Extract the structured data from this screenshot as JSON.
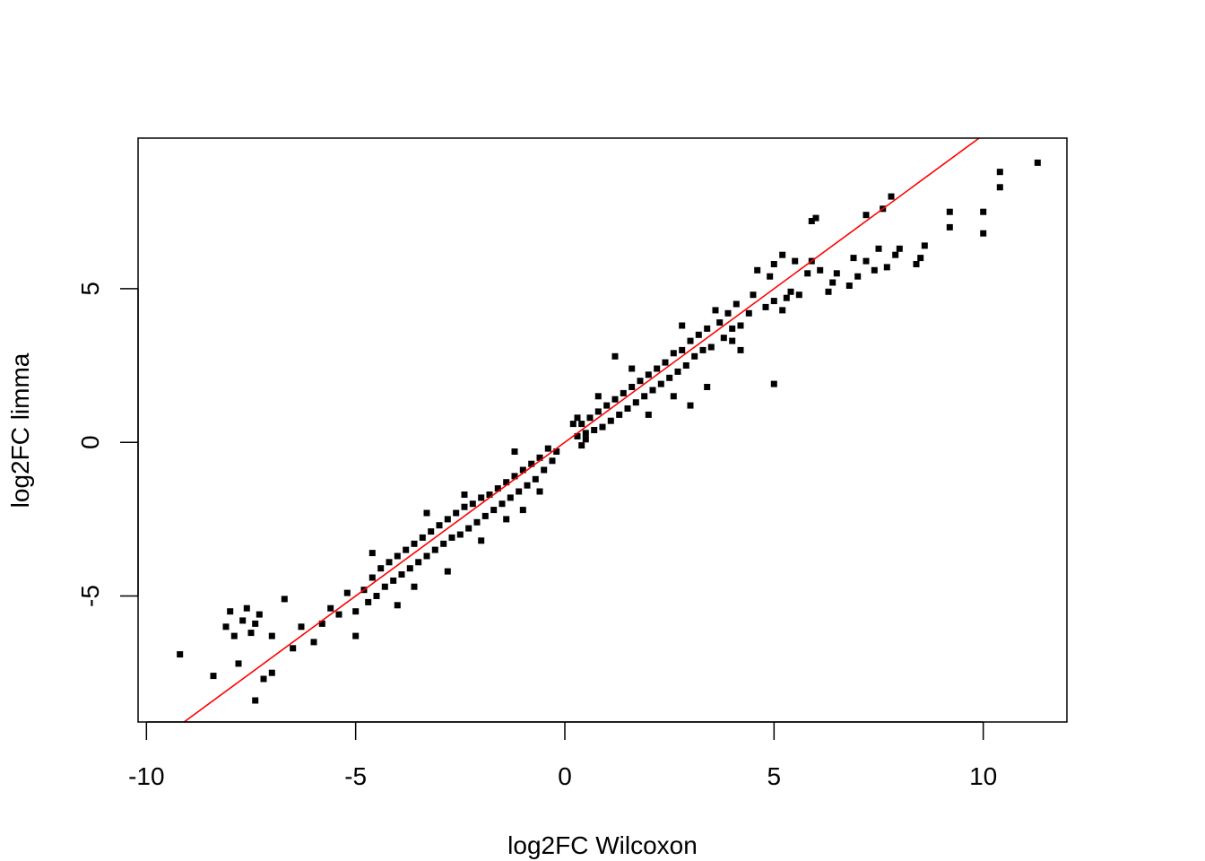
{
  "chart_data": {
    "type": "scatter",
    "title": "",
    "xlabel": "log2FC Wilcoxon",
    "ylabel": "log2FC limma",
    "xlim": [
      -10.2,
      12.0
    ],
    "ylim": [
      -9.1,
      9.9
    ],
    "x_ticks": [
      -10,
      -5,
      0,
      5,
      10
    ],
    "x_tick_labels": [
      "-10",
      "-5",
      "0",
      "5",
      "10"
    ],
    "y_ticks": [
      -5,
      0,
      5
    ],
    "y_tick_labels": [
      "-5",
      "0",
      "5"
    ],
    "grid": false,
    "legend": "none",
    "point_color": "#000000",
    "reference_line": {
      "slope": 1,
      "intercept": 0,
      "color": "#ff0000"
    },
    "series": [
      {
        "points": [
          [
            11.3,
            9.1
          ],
          [
            10.4,
            8.8
          ],
          [
            10.4,
            8.3
          ],
          [
            10.0,
            7.5
          ],
          [
            10.0,
            6.8
          ],
          [
            9.2,
            7.5
          ],
          [
            9.2,
            7.0
          ],
          [
            8.6,
            6.4
          ],
          [
            8.5,
            6.0
          ],
          [
            8.4,
            5.8
          ],
          [
            8.0,
            6.3
          ],
          [
            7.9,
            6.1
          ],
          [
            7.8,
            8.0
          ],
          [
            7.7,
            5.7
          ],
          [
            7.6,
            7.6
          ],
          [
            7.5,
            6.3
          ],
          [
            7.4,
            5.6
          ],
          [
            7.2,
            7.4
          ],
          [
            7.2,
            5.9
          ],
          [
            7.0,
            5.4
          ],
          [
            6.9,
            6.0
          ],
          [
            6.8,
            5.1
          ],
          [
            6.5,
            5.5
          ],
          [
            6.4,
            5.2
          ],
          [
            6.3,
            4.9
          ],
          [
            6.1,
            5.6
          ],
          [
            6.0,
            7.3
          ],
          [
            5.9,
            7.2
          ],
          [
            5.9,
            5.9
          ],
          [
            5.8,
            5.5
          ],
          [
            5.6,
            4.8
          ],
          [
            5.5,
            5.9
          ],
          [
            5.4,
            4.9
          ],
          [
            5.3,
            4.7
          ],
          [
            5.2,
            4.3
          ],
          [
            5.2,
            6.1
          ],
          [
            5.0,
            5.8
          ],
          [
            5.0,
            4.6
          ],
          [
            4.9,
            5.4
          ],
          [
            4.8,
            4.4
          ],
          [
            4.6,
            5.6
          ],
          [
            4.5,
            4.8
          ],
          [
            4.4,
            4.2
          ],
          [
            4.2,
            3.8
          ],
          [
            4.1,
            4.5
          ],
          [
            4.0,
            3.7
          ],
          [
            3.9,
            4.2
          ],
          [
            3.8,
            3.4
          ],
          [
            3.7,
            3.9
          ],
          [
            3.6,
            4.3
          ],
          [
            3.5,
            3.1
          ],
          [
            3.4,
            3.7
          ],
          [
            3.3,
            3.0
          ],
          [
            3.2,
            3.5
          ],
          [
            3.1,
            2.8
          ],
          [
            3.0,
            3.3
          ],
          [
            2.9,
            2.5
          ],
          [
            2.8,
            3.0
          ],
          [
            2.7,
            2.3
          ],
          [
            2.6,
            2.9
          ],
          [
            2.5,
            2.1
          ],
          [
            2.4,
            2.6
          ],
          [
            2.3,
            1.9
          ],
          [
            2.2,
            2.4
          ],
          [
            2.1,
            1.7
          ],
          [
            2.0,
            2.2
          ],
          [
            1.9,
            1.5
          ],
          [
            1.8,
            2.0
          ],
          [
            1.7,
            1.3
          ],
          [
            1.6,
            1.8
          ],
          [
            1.5,
            1.1
          ],
          [
            1.4,
            1.6
          ],
          [
            1.3,
            0.9
          ],
          [
            1.2,
            1.4
          ],
          [
            1.1,
            0.7
          ],
          [
            1.0,
            1.2
          ],
          [
            0.9,
            0.5
          ],
          [
            0.8,
            1.0
          ],
          [
            0.7,
            0.4
          ],
          [
            0.6,
            0.8
          ],
          [
            0.5,
            0.3
          ],
          [
            0.4,
            0.6
          ],
          [
            0.3,
            0.2
          ],
          [
            0.3,
            0.8
          ],
          [
            0.4,
            -0.1
          ],
          [
            0.5,
            0.1
          ],
          [
            0.2,
            0.6
          ],
          [
            3.4,
            1.8
          ],
          [
            3.0,
            1.2
          ],
          [
            2.6,
            1.5
          ],
          [
            5.0,
            1.9
          ],
          [
            4.0,
            3.3
          ],
          [
            1.2,
            2.8
          ],
          [
            2.0,
            0.9
          ],
          [
            0.8,
            1.5
          ],
          [
            2.8,
            3.8
          ],
          [
            1.6,
            2.4
          ],
          [
            4.2,
            3.0
          ],
          [
            -0.2,
            -0.3
          ],
          [
            -0.3,
            -0.6
          ],
          [
            -0.4,
            -0.2
          ],
          [
            -0.5,
            -0.9
          ],
          [
            -0.6,
            -0.5
          ],
          [
            -0.7,
            -1.2
          ],
          [
            -0.8,
            -0.7
          ],
          [
            -0.9,
            -1.4
          ],
          [
            -1.0,
            -0.9
          ],
          [
            -1.1,
            -1.6
          ],
          [
            -1.2,
            -1.1
          ],
          [
            -1.3,
            -1.8
          ],
          [
            -1.4,
            -1.3
          ],
          [
            -1.5,
            -2.0
          ],
          [
            -1.6,
            -1.5
          ],
          [
            -1.7,
            -2.2
          ],
          [
            -1.8,
            -1.7
          ],
          [
            -1.9,
            -2.4
          ],
          [
            -2.0,
            -1.8
          ],
          [
            -2.1,
            -2.6
          ],
          [
            -2.2,
            -2.0
          ],
          [
            -2.3,
            -2.8
          ],
          [
            -2.4,
            -2.1
          ],
          [
            -2.5,
            -3.0
          ],
          [
            -2.6,
            -2.3
          ],
          [
            -2.7,
            -3.1
          ],
          [
            -2.8,
            -2.5
          ],
          [
            -2.9,
            -3.3
          ],
          [
            -3.0,
            -2.7
          ],
          [
            -3.1,
            -3.5
          ],
          [
            -3.2,
            -2.9
          ],
          [
            -3.3,
            -3.7
          ],
          [
            -3.4,
            -3.1
          ],
          [
            -3.5,
            -3.9
          ],
          [
            -3.6,
            -3.3
          ],
          [
            -3.7,
            -4.1
          ],
          [
            -3.8,
            -3.5
          ],
          [
            -3.9,
            -4.3
          ],
          [
            -4.0,
            -3.7
          ],
          [
            -4.1,
            -4.5
          ],
          [
            -4.2,
            -3.9
          ],
          [
            -4.3,
            -4.7
          ],
          [
            -4.4,
            -4.1
          ],
          [
            -4.5,
            -5.0
          ],
          [
            -4.6,
            -4.4
          ],
          [
            -4.7,
            -5.2
          ],
          [
            -4.8,
            -4.8
          ],
          [
            -5.0,
            -5.5
          ],
          [
            -5.2,
            -4.9
          ],
          [
            -5.4,
            -5.6
          ],
          [
            -5.6,
            -5.4
          ],
          [
            -5.8,
            -5.9
          ],
          [
            -6.0,
            -6.5
          ],
          [
            -6.3,
            -6.0
          ],
          [
            -6.5,
            -6.7
          ],
          [
            -6.7,
            -5.1
          ],
          [
            -7.0,
            -6.3
          ],
          [
            -7.0,
            -7.5
          ],
          [
            -7.2,
            -7.7
          ],
          [
            -7.3,
            -5.6
          ],
          [
            -7.4,
            -5.9
          ],
          [
            -7.4,
            -8.4
          ],
          [
            -7.5,
            -6.2
          ],
          [
            -7.6,
            -5.4
          ],
          [
            -7.7,
            -5.8
          ],
          [
            -7.8,
            -7.2
          ],
          [
            -7.9,
            -6.3
          ],
          [
            -8.0,
            -5.5
          ],
          [
            -8.1,
            -6.0
          ],
          [
            -8.4,
            -7.6
          ],
          [
            -9.2,
            -6.9
          ],
          [
            -4.0,
            -5.3
          ],
          [
            -5.0,
            -6.3
          ],
          [
            -3.3,
            -2.3
          ],
          [
            -2.0,
            -3.2
          ],
          [
            -1.4,
            -2.5
          ],
          [
            -0.6,
            -1.6
          ],
          [
            -4.6,
            -3.6
          ],
          [
            -2.8,
            -4.2
          ],
          [
            -3.6,
            -4.7
          ],
          [
            -1.0,
            -2.2
          ],
          [
            -2.4,
            -1.7
          ],
          [
            -1.2,
            -0.3
          ]
        ]
      }
    ]
  }
}
